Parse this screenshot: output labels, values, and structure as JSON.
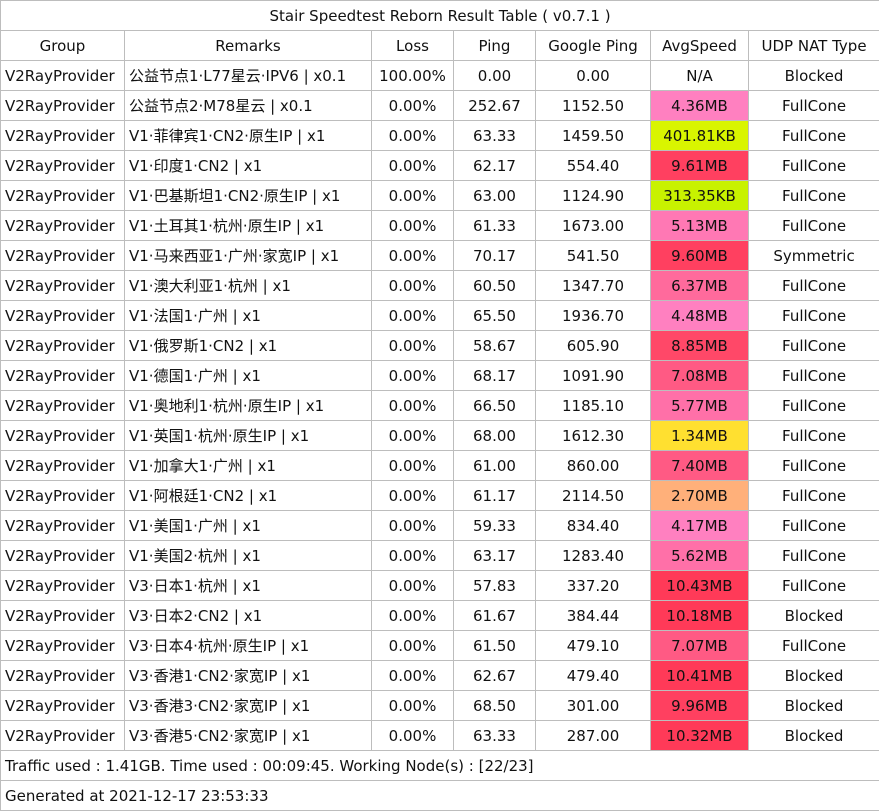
{
  "title": "Stair Speedtest Reborn Result Table ( v0.7.1 )",
  "headers": [
    "Group",
    "Remarks",
    "Loss",
    "Ping",
    "Google Ping",
    "AvgSpeed",
    "UDP NAT Type"
  ],
  "rows": [
    {
      "group": "V2RayProvider",
      "remarks": "公益节点1·L77星云·IPV6 | x0.1",
      "loss": "100.00%",
      "ping": "0.00",
      "google_ping": "0.00",
      "avg_speed": "N/A",
      "speed_color": "#ffffff",
      "nat": "Blocked"
    },
    {
      "group": "V2RayProvider",
      "remarks": "公益节点2·M78星云 | x0.1",
      "loss": "0.00%",
      "ping": "252.67",
      "google_ping": "1152.50",
      "avg_speed": "4.36MB",
      "speed_color": "#ff80c0",
      "nat": "FullCone"
    },
    {
      "group": "V2RayProvider",
      "remarks": "V1·菲律宾1·CN2·原生IP | x1",
      "loss": "0.00%",
      "ping": "63.33",
      "google_ping": "1459.50",
      "avg_speed": "401.81KB",
      "speed_color": "#d9f500",
      "nat": "FullCone"
    },
    {
      "group": "V2RayProvider",
      "remarks": "V1·印度1·CN2 | x1",
      "loss": "0.00%",
      "ping": "62.17",
      "google_ping": "554.40",
      "avg_speed": "9.61MB",
      "speed_color": "#ff4060",
      "nat": "FullCone"
    },
    {
      "group": "V2RayProvider",
      "remarks": "V1·巴基斯坦1·CN2·原生IP | x1",
      "loss": "0.00%",
      "ping": "63.00",
      "google_ping": "1124.90",
      "avg_speed": "313.35KB",
      "speed_color": "#c8f200",
      "nat": "FullCone"
    },
    {
      "group": "V2RayProvider",
      "remarks": "V1·土耳其1·杭州·原生IP | x1",
      "loss": "0.00%",
      "ping": "61.33",
      "google_ping": "1673.00",
      "avg_speed": "5.13MB",
      "speed_color": "#ff78b4",
      "nat": "FullCone"
    },
    {
      "group": "V2RayProvider",
      "remarks": "V1·马来西亚1·广州·家宽IP | x1",
      "loss": "0.00%",
      "ping": "70.17",
      "google_ping": "541.50",
      "avg_speed": "9.60MB",
      "speed_color": "#ff4060",
      "nat": "Symmetric"
    },
    {
      "group": "V2RayProvider",
      "remarks": "V1·澳大利亚1·杭州 | x1",
      "loss": "0.00%",
      "ping": "60.50",
      "google_ping": "1347.70",
      "avg_speed": "6.37MB",
      "speed_color": "#ff6a9c",
      "nat": "FullCone"
    },
    {
      "group": "V2RayProvider",
      "remarks": "V1·法国1·广州 | x1",
      "loss": "0.00%",
      "ping": "65.50",
      "google_ping": "1936.70",
      "avg_speed": "4.48MB",
      "speed_color": "#ff80c0",
      "nat": "FullCone"
    },
    {
      "group": "V2RayProvider",
      "remarks": "V1·俄罗斯1·CN2 | x1",
      "loss": "0.00%",
      "ping": "58.67",
      "google_ping": "605.90",
      "avg_speed": "8.85MB",
      "speed_color": "#ff4868",
      "nat": "FullCone"
    },
    {
      "group": "V2RayProvider",
      "remarks": "V1·德国1·广州 | x1",
      "loss": "0.00%",
      "ping": "68.17",
      "google_ping": "1091.90",
      "avg_speed": "7.08MB",
      "speed_color": "#ff5a84",
      "nat": "FullCone"
    },
    {
      "group": "V2RayProvider",
      "remarks": "V1·奥地利1·杭州·原生IP | x1",
      "loss": "0.00%",
      "ping": "66.50",
      "google_ping": "1185.10",
      "avg_speed": "5.77MB",
      "speed_color": "#ff70a8",
      "nat": "FullCone"
    },
    {
      "group": "V2RayProvider",
      "remarks": "V1·英国1·杭州·原生IP | x1",
      "loss": "0.00%",
      "ping": "68.00",
      "google_ping": "1612.30",
      "avg_speed": "1.34MB",
      "speed_color": "#ffe030",
      "nat": "FullCone"
    },
    {
      "group": "V2RayProvider",
      "remarks": "V1·加拿大1·广州 | x1",
      "loss": "0.00%",
      "ping": "61.00",
      "google_ping": "860.00",
      "avg_speed": "7.40MB",
      "speed_color": "#ff5a84",
      "nat": "FullCone"
    },
    {
      "group": "V2RayProvider",
      "remarks": "V1·阿根廷1·CN2 | x1",
      "loss": "0.00%",
      "ping": "61.17",
      "google_ping": "2114.50",
      "avg_speed": "2.70MB",
      "speed_color": "#ffb07a",
      "nat": "FullCone"
    },
    {
      "group": "V2RayProvider",
      "remarks": "V1·美国1·广州 | x1",
      "loss": "0.00%",
      "ping": "59.33",
      "google_ping": "834.40",
      "avg_speed": "4.17MB",
      "speed_color": "#ff80c0",
      "nat": "FullCone"
    },
    {
      "group": "V2RayProvider",
      "remarks": "V1·美国2·杭州 | x1",
      "loss": "0.00%",
      "ping": "63.17",
      "google_ping": "1283.40",
      "avg_speed": "5.62MB",
      "speed_color": "#ff70a8",
      "nat": "FullCone"
    },
    {
      "group": "V2RayProvider",
      "remarks": "V3·日本1·杭州 | x1",
      "loss": "0.00%",
      "ping": "57.83",
      "google_ping": "337.20",
      "avg_speed": "10.43MB",
      "speed_color": "#ff3a58",
      "nat": "FullCone"
    },
    {
      "group": "V2RayProvider",
      "remarks": "V3·日本2·CN2 | x1",
      "loss": "0.00%",
      "ping": "61.67",
      "google_ping": "384.44",
      "avg_speed": "10.18MB",
      "speed_color": "#ff3a58",
      "nat": "Blocked"
    },
    {
      "group": "V2RayProvider",
      "remarks": "V3·日本4·杭州·原生IP | x1",
      "loss": "0.00%",
      "ping": "61.50",
      "google_ping": "479.10",
      "avg_speed": "7.07MB",
      "speed_color": "#ff5a84",
      "nat": "FullCone"
    },
    {
      "group": "V2RayProvider",
      "remarks": "V3·香港1·CN2·家宽IP | x1",
      "loss": "0.00%",
      "ping": "62.67",
      "google_ping": "479.40",
      "avg_speed": "10.41MB",
      "speed_color": "#ff3a58",
      "nat": "Blocked"
    },
    {
      "group": "V2RayProvider",
      "remarks": "V3·香港3·CN2·家宽IP | x1",
      "loss": "0.00%",
      "ping": "68.50",
      "google_ping": "301.00",
      "avg_speed": "9.96MB",
      "speed_color": "#ff4060",
      "nat": "Blocked"
    },
    {
      "group": "V2RayProvider",
      "remarks": "V3·香港5·CN2·家宽IP | x1",
      "loss": "0.00%",
      "ping": "63.33",
      "google_ping": "287.00",
      "avg_speed": "10.32MB",
      "speed_color": "#ff3a58",
      "nat": "Blocked"
    }
  ],
  "footer": {
    "traffic": "Traffic used : 1.41GB. Time used : 00:09:45. Working Node(s) : [22/23]",
    "generated": "Generated at 2021-12-17 23:53:33"
  }
}
